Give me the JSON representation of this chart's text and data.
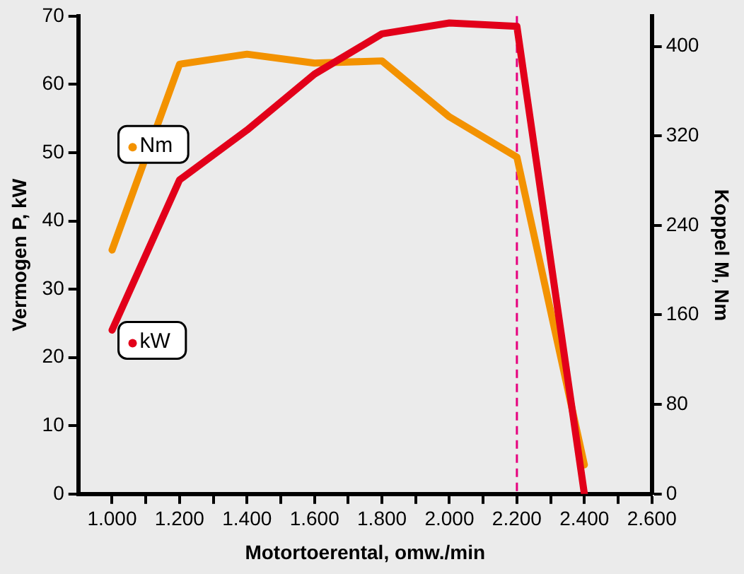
{
  "chart_data": {
    "type": "line",
    "xlabel": "Motortoerental, omw./min",
    "ylabel": "Vermogen P, kW",
    "y2label": "Koppel M, Nm",
    "x": [
      1000,
      1200,
      1400,
      1600,
      1800,
      2000,
      2200,
      2400
    ],
    "series": [
      {
        "name": "kW",
        "color": "#e2001a",
        "values": [
          24,
          46,
          53.3,
          61.5,
          67.4,
          69,
          68.5,
          0
        ]
      },
      {
        "name": "Nm",
        "color": "#f39200",
        "axis": "y2",
        "values": [
          218,
          384,
          393,
          385,
          387,
          337,
          301,
          26
        ]
      }
    ],
    "xlim": [
      900,
      2600
    ],
    "xticks": [
      {
        "value": 1000,
        "label": "1.000"
      },
      {
        "value": 1100,
        "label": null
      },
      {
        "value": 1200,
        "label": "1.200"
      },
      {
        "value": 1300,
        "label": null
      },
      {
        "value": 1400,
        "label": "1.400"
      },
      {
        "value": 1500,
        "label": null
      },
      {
        "value": 1600,
        "label": "1.600"
      },
      {
        "value": 1700,
        "label": null
      },
      {
        "value": 1800,
        "label": "1.800"
      },
      {
        "value": 1900,
        "label": null
      },
      {
        "value": 2000,
        "label": "2.000"
      },
      {
        "value": 2100,
        "label": null
      },
      {
        "value": 2200,
        "label": "2.200"
      },
      {
        "value": 2300,
        "label": null
      },
      {
        "value": 2400,
        "label": "2.400"
      },
      {
        "value": 2500,
        "label": null
      },
      {
        "value": 2600,
        "label": "2.600"
      }
    ],
    "ylim": [
      0,
      70
    ],
    "yticks": [
      0,
      10,
      20,
      30,
      40,
      50,
      60,
      70
    ],
    "y2lim": [
      0,
      427
    ],
    "y2ticks": [
      0,
      80,
      160,
      240,
      320,
      400
    ],
    "ref_lines": [
      {
        "axis": "x",
        "value": 2200,
        "color": "#e6007e",
        "line_style": "dashed"
      }
    ],
    "grid": false,
    "legend": "top left",
    "marker": "none",
    "line_style": "solid"
  }
}
